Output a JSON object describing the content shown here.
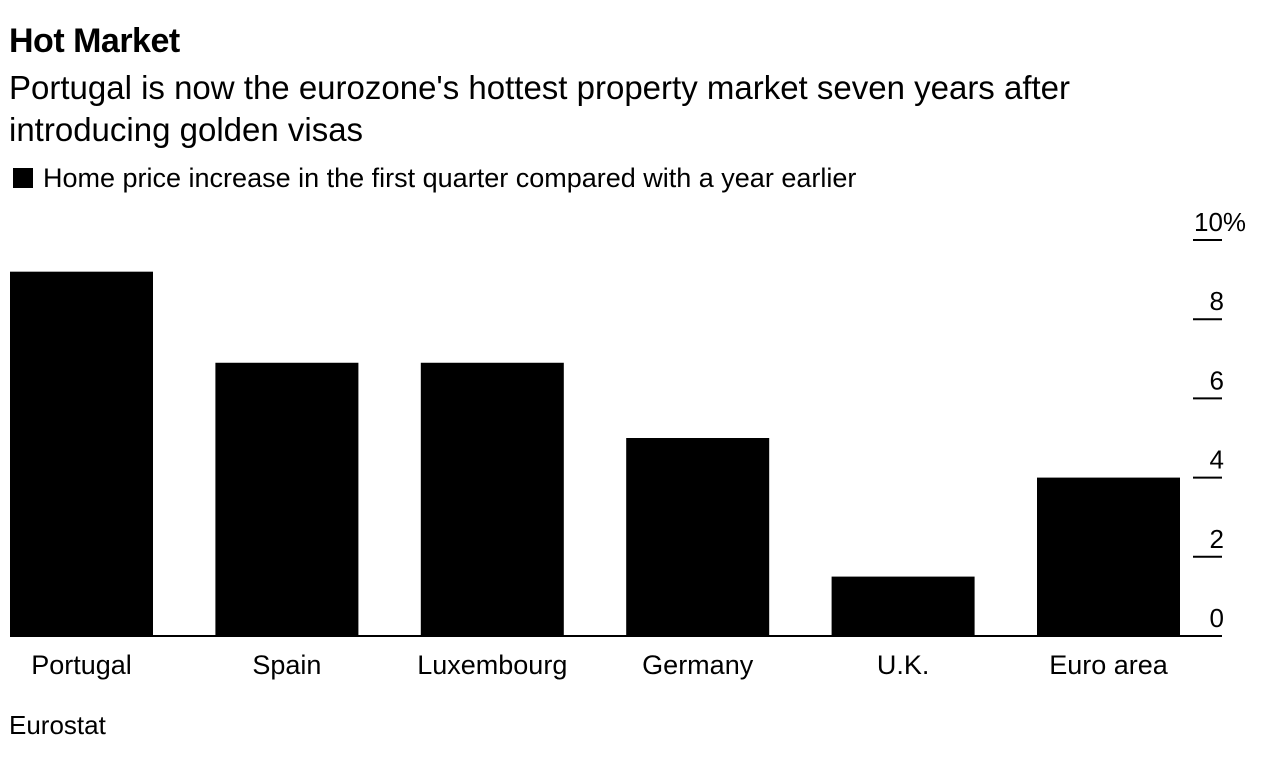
{
  "chart_data": {
    "type": "bar",
    "title": "Hot Market",
    "subtitle": "Portugal is now the eurozone's hottest property market seven years after introducing golden visas",
    "categories": [
      "Portugal",
      "Spain",
      "Luxembourg",
      "Germany",
      "U.K.",
      "Euro area"
    ],
    "series": [
      {
        "name": "Home price increase in the first quarter compared with a year earlier",
        "values": [
          9.2,
          6.9,
          6.9,
          5.0,
          1.5,
          4.0
        ],
        "color": "#000000"
      }
    ],
    "yticks": [
      "0",
      "2",
      "4",
      "6",
      "8",
      "10%"
    ],
    "ylim": [
      0,
      10
    ],
    "axis_position": "right",
    "grid": false,
    "legend_position": "top-left",
    "source": "Eurostat"
  }
}
